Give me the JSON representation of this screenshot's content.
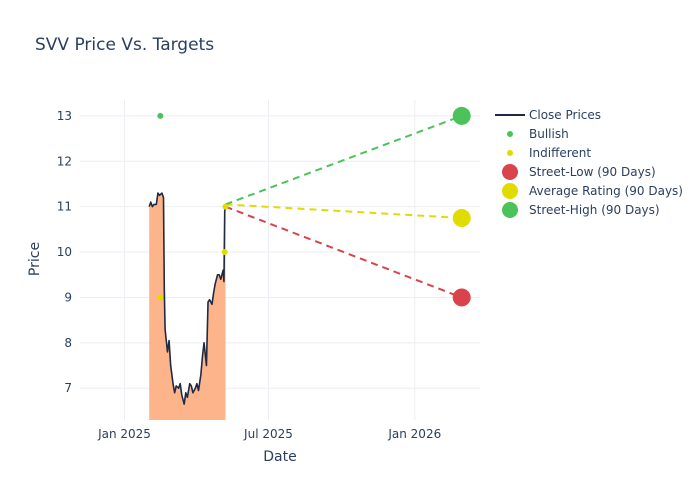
{
  "chart_data": {
    "type": "line",
    "title": "SVV Price Vs. Targets",
    "xlabel": "Date",
    "ylabel": "Price",
    "xlim": [
      "2024-11-06",
      "2026-03-24"
    ],
    "ylim": [
      6.3,
      13.35
    ],
    "x_ticks": [
      {
        "date": "2025-01-01",
        "label": "Jan 2025"
      },
      {
        "date": "2025-07-01",
        "label": "Jul 2025"
      },
      {
        "date": "2026-01-01",
        "label": "Jan 2026"
      }
    ],
    "y_ticks": [
      7,
      8,
      9,
      10,
      11,
      12,
      13
    ],
    "grid": true,
    "legend_position": "right",
    "colors": {
      "close": "#1f2a44",
      "fill": "#fdb48a",
      "bullish": "#4cc35a",
      "indifferent": "#e0dc00",
      "street_low": "#d9434c",
      "average": "#e0dc00",
      "street_high": "#4cc35a",
      "grid": "#ebeef3"
    },
    "series": [
      {
        "name": "Close Prices",
        "kind": "line",
        "points": [
          [
            "2025-02-01",
            11.0
          ],
          [
            "2025-02-03",
            11.1
          ],
          [
            "2025-02-05",
            11.0
          ],
          [
            "2025-02-07",
            11.05
          ],
          [
            "2025-02-10",
            11.05
          ],
          [
            "2025-02-12",
            11.3
          ],
          [
            "2025-02-14",
            11.25
          ],
          [
            "2025-02-17",
            11.3
          ],
          [
            "2025-02-19",
            11.2
          ],
          [
            "2025-02-20",
            9.2
          ],
          [
            "2025-02-21",
            8.3
          ],
          [
            "2025-02-24",
            7.8
          ],
          [
            "2025-02-26",
            8.05
          ],
          [
            "2025-02-28",
            7.5
          ],
          [
            "2025-03-03",
            7.1
          ],
          [
            "2025-03-05",
            6.9
          ],
          [
            "2025-03-07",
            7.05
          ],
          [
            "2025-03-10",
            7.0
          ],
          [
            "2025-03-12",
            7.1
          ],
          [
            "2025-03-14",
            6.85
          ],
          [
            "2025-03-17",
            6.65
          ],
          [
            "2025-03-19",
            6.9
          ],
          [
            "2025-03-21",
            6.8
          ],
          [
            "2025-03-24",
            7.1
          ],
          [
            "2025-03-26",
            7.05
          ],
          [
            "2025-03-28",
            6.9
          ],
          [
            "2025-03-31",
            7.0
          ],
          [
            "2025-04-02",
            7.1
          ],
          [
            "2025-04-04",
            6.95
          ],
          [
            "2025-04-07",
            7.3
          ],
          [
            "2025-04-09",
            7.7
          ],
          [
            "2025-04-11",
            8.0
          ],
          [
            "2025-04-14",
            7.5
          ],
          [
            "2025-04-16",
            8.9
          ],
          [
            "2025-04-18",
            8.95
          ],
          [
            "2025-04-21",
            8.85
          ],
          [
            "2025-04-23",
            9.1
          ],
          [
            "2025-04-25",
            9.3
          ],
          [
            "2025-04-28",
            9.5
          ],
          [
            "2025-04-30",
            9.5
          ],
          [
            "2025-05-02",
            9.4
          ],
          [
            "2025-05-05",
            9.6
          ],
          [
            "2025-05-06",
            9.35
          ],
          [
            "2025-05-07",
            10.9
          ],
          [
            "2025-05-08",
            11.0
          ]
        ]
      },
      {
        "name": "Bullish",
        "kind": "markers",
        "points": [
          [
            "2025-02-15",
            13.0
          ]
        ]
      },
      {
        "name": "Indifferent",
        "kind": "markers",
        "points": [
          [
            "2025-02-15",
            9.0
          ],
          [
            "2025-05-07",
            10.0
          ],
          [
            "2025-05-08",
            11.0
          ]
        ]
      },
      {
        "name": "Street-Low (90 Days)",
        "kind": "target",
        "points": [
          [
            "2025-05-08",
            11.0
          ],
          [
            "2026-03-01",
            9.0
          ]
        ]
      },
      {
        "name": "Average Rating (90 Days)",
        "kind": "target",
        "points": [
          [
            "2025-05-08",
            11.05
          ],
          [
            "2026-03-01",
            10.75
          ]
        ]
      },
      {
        "name": "Street-High (90 Days)",
        "kind": "target",
        "points": [
          [
            "2025-05-08",
            11.05
          ],
          [
            "2026-03-01",
            13.0
          ]
        ]
      }
    ]
  }
}
